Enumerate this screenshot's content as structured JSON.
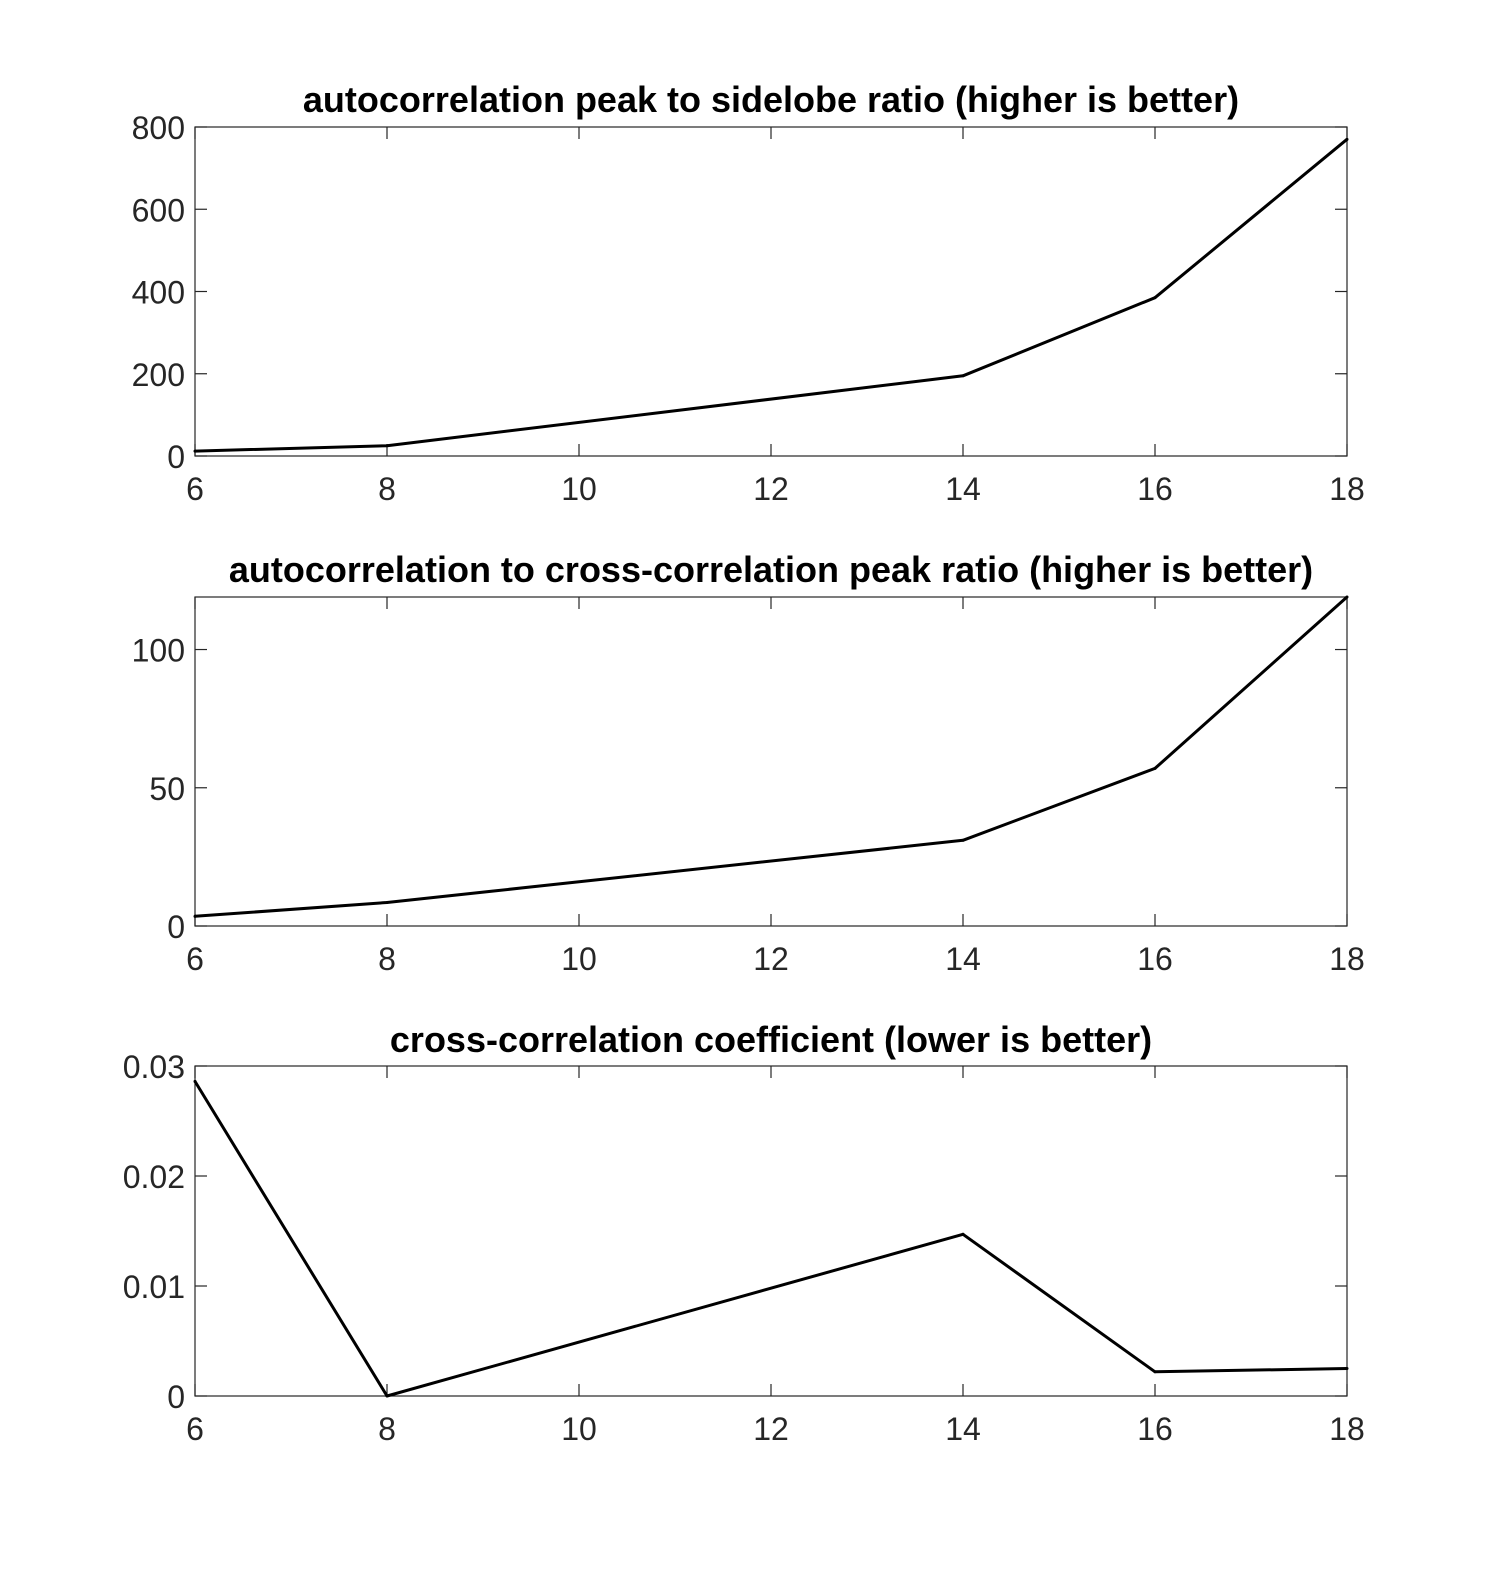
{
  "chart_data": [
    {
      "type": "line",
      "title": "autocorrelation peak to sidelobe ratio (higher is better)",
      "xlabel": "",
      "ylabel": "",
      "x": [
        6,
        8,
        14,
        16,
        18
      ],
      "series": [
        {
          "values": [
            12,
            25,
            195,
            385,
            770
          ]
        }
      ],
      "xlim": [
        6,
        18
      ],
      "ylim": [
        0,
        800
      ],
      "xticks": [
        6,
        8,
        10,
        12,
        14,
        16,
        18
      ],
      "yticks": [
        0,
        200,
        400,
        600,
        800
      ],
      "xtick_labels": [
        "6",
        "8",
        "10",
        "12",
        "14",
        "16",
        "18"
      ],
      "ytick_labels": [
        "0",
        "200",
        "400",
        "600",
        "800"
      ],
      "grid": false,
      "line_color": "#000000"
    },
    {
      "type": "line",
      "title": "autocorrelation to cross-correlation peak ratio (higher is better)",
      "xlabel": "",
      "ylabel": "",
      "x": [
        6,
        8,
        14,
        16,
        18
      ],
      "series": [
        {
          "values": [
            3.5,
            8.5,
            31,
            57,
            119
          ]
        }
      ],
      "xlim": [
        6,
        18
      ],
      "ylim": [
        0,
        119
      ],
      "xticks": [
        6,
        8,
        10,
        12,
        14,
        16,
        18
      ],
      "yticks": [
        0,
        50,
        100
      ],
      "xtick_labels": [
        "6",
        "8",
        "10",
        "12",
        "14",
        "16",
        "18"
      ],
      "ytick_labels": [
        "0",
        "50",
        "100"
      ],
      "grid": false,
      "line_color": "#000000"
    },
    {
      "type": "line",
      "title": "cross-correlation coefficient (lower is better)",
      "xlabel": "",
      "ylabel": "",
      "x": [
        6,
        8,
        14,
        16,
        18
      ],
      "series": [
        {
          "values": [
            0.0286,
            0.0,
            0.0147,
            0.0022,
            0.0025
          ]
        }
      ],
      "xlim": [
        6,
        18
      ],
      "ylim": [
        0,
        0.03
      ],
      "xticks": [
        6,
        8,
        10,
        12,
        14,
        16,
        18
      ],
      "yticks": [
        0,
        0.01,
        0.02,
        0.03
      ],
      "xtick_labels": [
        "6",
        "8",
        "10",
        "12",
        "14",
        "16",
        "18"
      ],
      "ytick_labels": [
        "0",
        "0.01",
        "0.02",
        "0.03"
      ],
      "grid": false,
      "line_color": "#000000"
    }
  ]
}
